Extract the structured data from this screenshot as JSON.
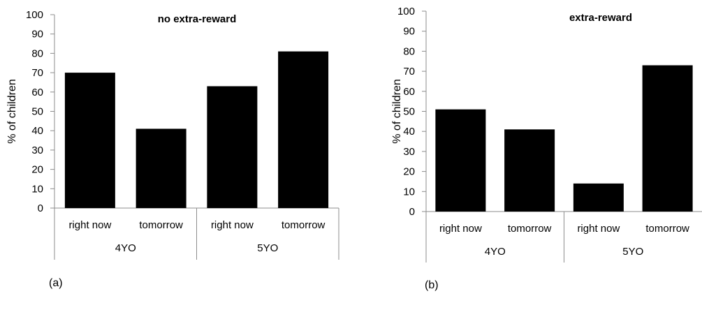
{
  "chart_data": [
    {
      "type": "bar",
      "panel_label": "(a)",
      "title": "no extra-reward",
      "ylabel": "% of  children",
      "ylim": [
        0,
        100
      ],
      "yticks": [
        0,
        10,
        20,
        30,
        40,
        50,
        60,
        70,
        80,
        90,
        100
      ],
      "groups": [
        "4YO",
        "5YO"
      ],
      "categories": [
        "right now",
        "tomorrow",
        "right now",
        "tomorrow"
      ],
      "values": [
        70,
        41,
        63,
        81
      ],
      "bar_color": "#000000"
    },
    {
      "type": "bar",
      "panel_label": "(b)",
      "title": "extra-reward",
      "ylabel": "% of  children",
      "ylim": [
        0,
        100
      ],
      "yticks": [
        0,
        10,
        20,
        30,
        40,
        50,
        60,
        70,
        80,
        90,
        100
      ],
      "groups": [
        "4YO",
        "5YO"
      ],
      "categories": [
        "right now",
        "tomorrow",
        "right now",
        "tomorrow"
      ],
      "values": [
        51,
        41,
        14,
        73
      ],
      "bar_color": "#000000"
    }
  ]
}
